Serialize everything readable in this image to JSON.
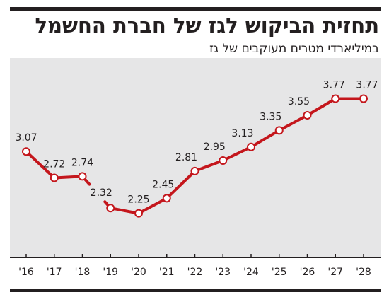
{
  "header": {
    "title": "תחזית הביקוש לגז של חברת החשמל",
    "subtitle": "במיליארדי מטרים מעוקבים של גז"
  },
  "chart_data": {
    "type": "line",
    "title": "תחזית הביקוש לגז של חברת החשמל",
    "subtitle": "במיליארדי מטרים מעוקבים של גז",
    "xlabel": "",
    "ylabel": "",
    "categories": [
      "'16",
      "'17",
      "'18",
      "'19",
      "'20",
      "'21",
      "'22",
      "'23",
      "'24",
      "'25",
      "'26",
      "'27",
      "'28"
    ],
    "series": [
      {
        "values": [
          3.07,
          2.72,
          2.74,
          2.32,
          2.25,
          2.45,
          2.81,
          2.95,
          3.13,
          3.35,
          3.55,
          3.77,
          3.77
        ]
      }
    ],
    "value_labels": [
      "3.07",
      "2.72",
      "2.74",
      "2.32",
      "2.25",
      "2.45",
      "2.81",
      "2.95",
      "3.13",
      "3.35",
      "3.55",
      "3.77",
      "3.77"
    ],
    "ylim": [
      1.9,
      4.0
    ],
    "grid": false,
    "legend": "none",
    "gap_after_index": 2,
    "colors": {
      "line": "#c4161c",
      "plot_background": "#e6e6e7",
      "axis": "#231f20",
      "marker_fill": "#ffffff"
    }
  }
}
